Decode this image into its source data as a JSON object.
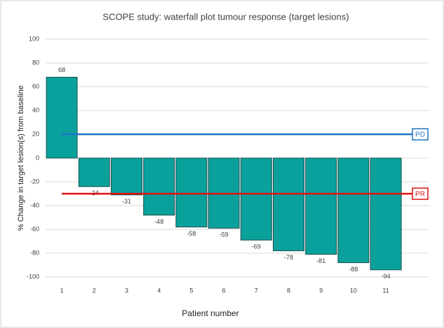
{
  "chart_data": {
    "type": "bar",
    "title": "SCOPE study: waterfall plot tumour response (target lesions)",
    "x_label": "Patient number",
    "y_label": "% Change in target lesion(s) from baseline",
    "categories": [
      "1",
      "2",
      "3",
      "4",
      "5",
      "6",
      "7",
      "8",
      "9",
      "10",
      "11"
    ],
    "values": [
      68,
      -24,
      -31,
      -48,
      -58,
      -59,
      -69,
      -78,
      -81,
      -88,
      -94
    ],
    "color": "#0aa19c",
    "ylim": [
      -100,
      100
    ],
    "yticks": [
      -100,
      -80,
      -60,
      -40,
      -20,
      0,
      20,
      40,
      60,
      80,
      100
    ],
    "grid": true,
    "reference_lines": [
      {
        "label": "PD",
        "value": 20,
        "color": "#1f73c4"
      },
      {
        "label": "PR",
        "value": -30,
        "color": "#e01010"
      }
    ]
  }
}
